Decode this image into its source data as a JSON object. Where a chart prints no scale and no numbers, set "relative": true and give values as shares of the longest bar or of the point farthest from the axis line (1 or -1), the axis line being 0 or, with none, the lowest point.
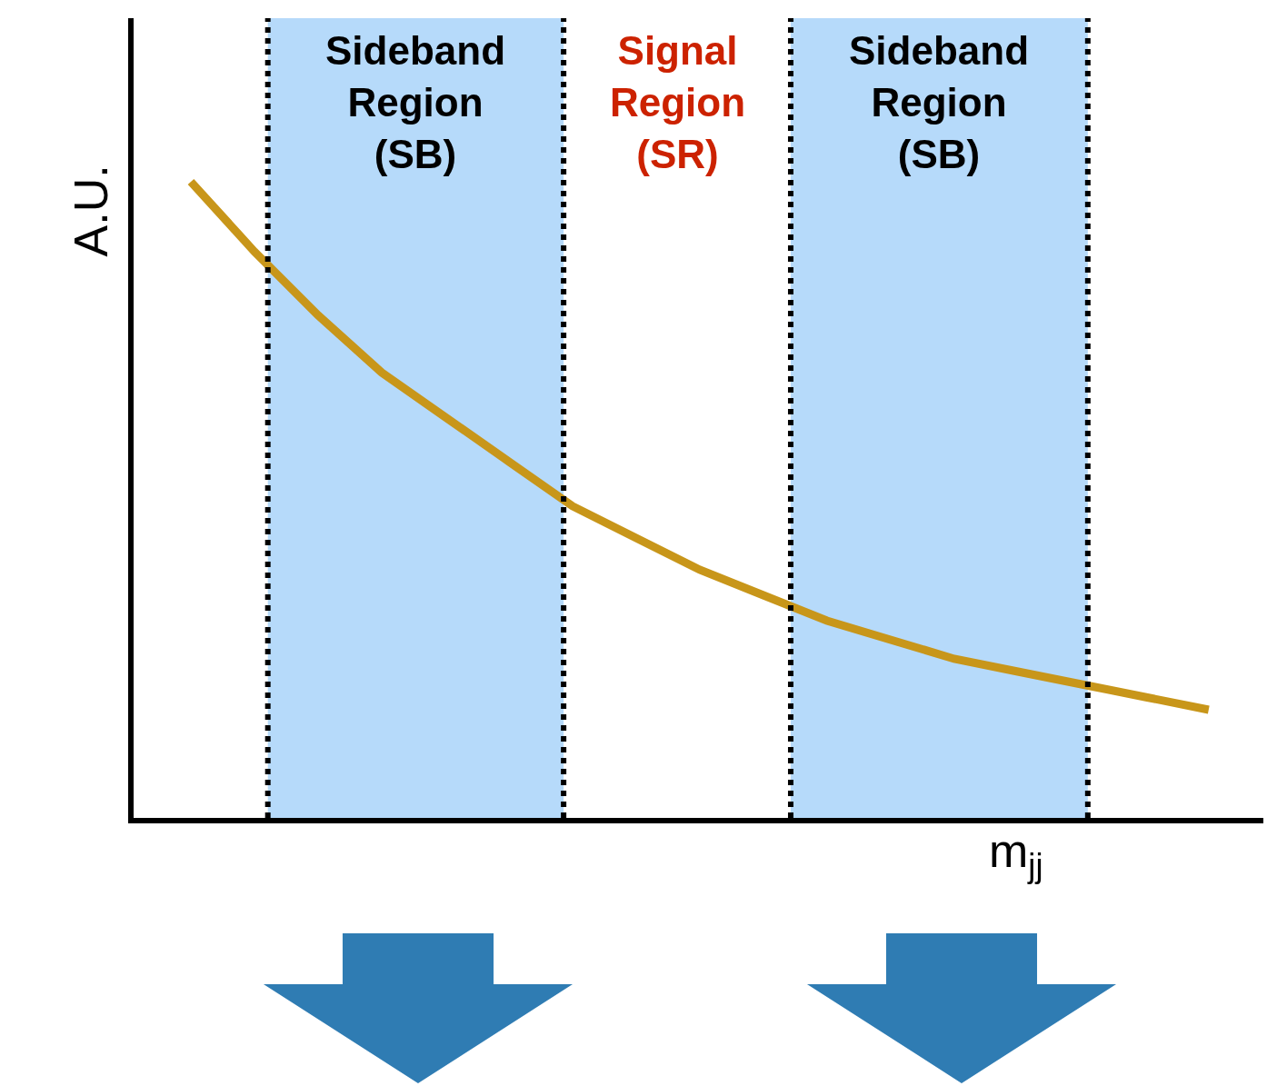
{
  "chart_data": {
    "type": "line",
    "relative": true,
    "xlabel": "m$_{jj}$",
    "ylabel": "A.U.",
    "categories": [
      null,
      null,
      null,
      null,
      null,
      null,
      null,
      null,
      null,
      null,
      null,
      null,
      null,
      null,
      null,
      null,
      null
    ],
    "series": [
      {
        "color": "#c8961a",
        "values": [
          1,
          0.89,
          0.79,
          0.7,
          0.63,
          0.56,
          0.49,
          0.44,
          0.39,
          0.35,
          0.31,
          0.28,
          0.25,
          0.23,
          0.21,
          0.19,
          0.17
        ]
      }
    ],
    "annotations": [
      "Sideband Region (SB)",
      "Signal Region (SR)",
      "Sideband Region (SB)"
    ],
    "grid": false
  }
}
